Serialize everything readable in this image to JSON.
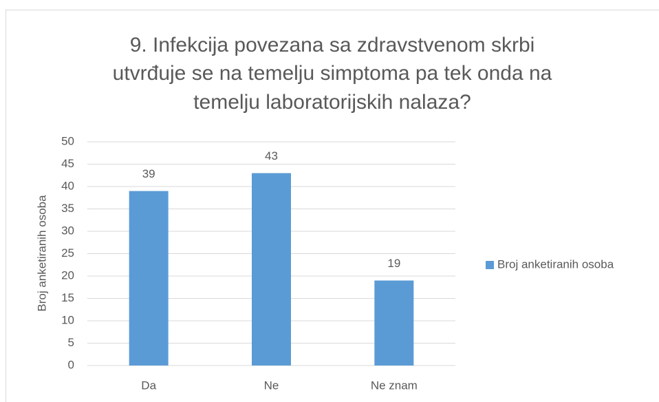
{
  "chart_data": {
    "type": "bar",
    "title": [
      "9. Infekcija povezana sa zdravstvenom skrbi",
      "utvrđuje se na temelju simptoma pa tek onda na",
      "temelju laboratorijskih nalaza?"
    ],
    "ylabel": "Broj anketiranih osoba",
    "categories": [
      "Da",
      "Ne",
      "Ne znam"
    ],
    "series": [
      {
        "name": "Broj anketiranih osoba",
        "color": "#5b9bd5",
        "values": [
          39,
          43,
          19
        ]
      }
    ],
    "ylim": [
      0,
      50
    ],
    "yticks": [
      0,
      5,
      10,
      15,
      20,
      25,
      30,
      35,
      40,
      45,
      50
    ],
    "grid": true,
    "legend": "right",
    "data_labels": true
  }
}
